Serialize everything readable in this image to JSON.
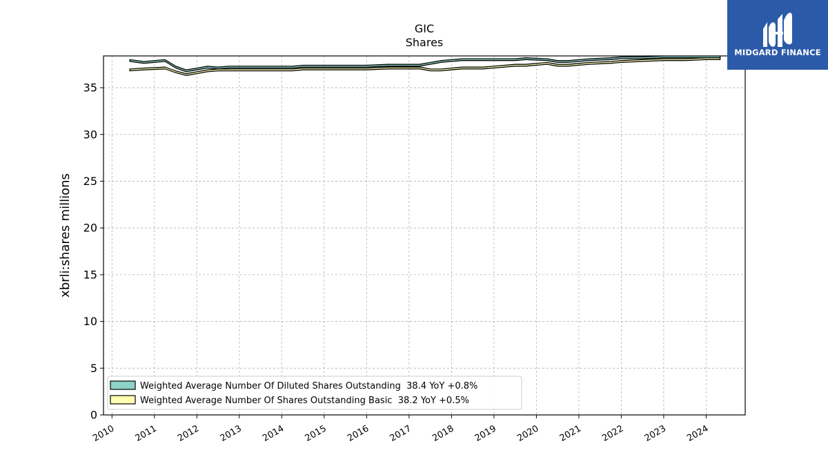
{
  "chart_data": {
    "type": "area",
    "title": "GIC",
    "subtitle": "Shares",
    "ylabel": "xbrli:shares millions",
    "xlabel": "",
    "xlim": [
      2009.8,
      2024.92
    ],
    "ylim": [
      0,
      38.4
    ],
    "yticks": [
      0,
      5,
      10,
      15,
      20,
      25,
      30,
      35
    ],
    "xticks": [
      "2010",
      "2011",
      "2012",
      "2013",
      "2014",
      "2015",
      "2016",
      "2017",
      "2018",
      "2019",
      "2020",
      "2021",
      "2022",
      "2023",
      "2024"
    ],
    "grid": true,
    "legend_position": "lower-left",
    "series": [
      {
        "name": "Weighted Average Number Of Diluted Shares Outstanding  38.4 YoY +0.8%",
        "color": "#8dd3c7",
        "x": [
          2010.42,
          2010.75,
          2011.25,
          2011.5,
          2011.75,
          2012.0,
          2012.25,
          2012.5,
          2012.75,
          2013.25,
          2014.0,
          2014.25,
          2014.5,
          2015.0,
          2015.5,
          2016.0,
          2016.5,
          2017.0,
          2017.25,
          2017.5,
          2017.75,
          2018.0,
          2018.25,
          2018.75,
          2019.0,
          2019.5,
          2019.75,
          2020.25,
          2020.5,
          2020.75,
          2021.0,
          2021.25,
          2021.75,
          2022.0,
          2022.5,
          2023.0,
          2023.5,
          2024.0,
          2024.33
        ],
        "values": [
          38.0,
          37.8,
          38.0,
          37.3,
          36.9,
          37.1,
          37.3,
          37.2,
          37.3,
          37.3,
          37.3,
          37.3,
          37.4,
          37.4,
          37.4,
          37.4,
          37.5,
          37.5,
          37.5,
          37.7,
          37.9,
          38.0,
          38.1,
          38.1,
          38.1,
          38.1,
          38.2,
          38.1,
          37.9,
          37.9,
          38.0,
          38.1,
          38.2,
          38.3,
          38.3,
          38.4,
          38.4,
          38.4,
          38.4
        ]
      },
      {
        "name": "Weighted Average Number Of Shares Outstanding Basic  38.2 YoY +0.5%",
        "color": "#ffffb3",
        "x": [
          2010.42,
          2010.75,
          2011.25,
          2011.5,
          2011.75,
          2012.0,
          2012.25,
          2012.5,
          2012.75,
          2013.25,
          2014.0,
          2014.25,
          2014.5,
          2015.0,
          2015.5,
          2016.0,
          2016.5,
          2017.0,
          2017.25,
          2017.5,
          2017.75,
          2018.0,
          2018.25,
          2018.75,
          2019.0,
          2019.5,
          2019.75,
          2020.25,
          2020.5,
          2020.75,
          2021.0,
          2021.25,
          2021.75,
          2022.0,
          2022.5,
          2023.0,
          2023.5,
          2024.0,
          2024.33
        ],
        "values": [
          37.0,
          37.1,
          37.2,
          36.8,
          36.5,
          36.7,
          36.9,
          37.0,
          37.0,
          37.0,
          37.0,
          37.0,
          37.1,
          37.1,
          37.1,
          37.1,
          37.2,
          37.2,
          37.2,
          37.0,
          37.0,
          37.1,
          37.2,
          37.2,
          37.3,
          37.5,
          37.5,
          37.7,
          37.5,
          37.5,
          37.6,
          37.7,
          37.8,
          37.9,
          38.0,
          38.1,
          38.1,
          38.2,
          38.2
        ]
      }
    ]
  },
  "logo": {
    "text": "MIDGARD FINANCE",
    "background": "#2b5aa8"
  }
}
